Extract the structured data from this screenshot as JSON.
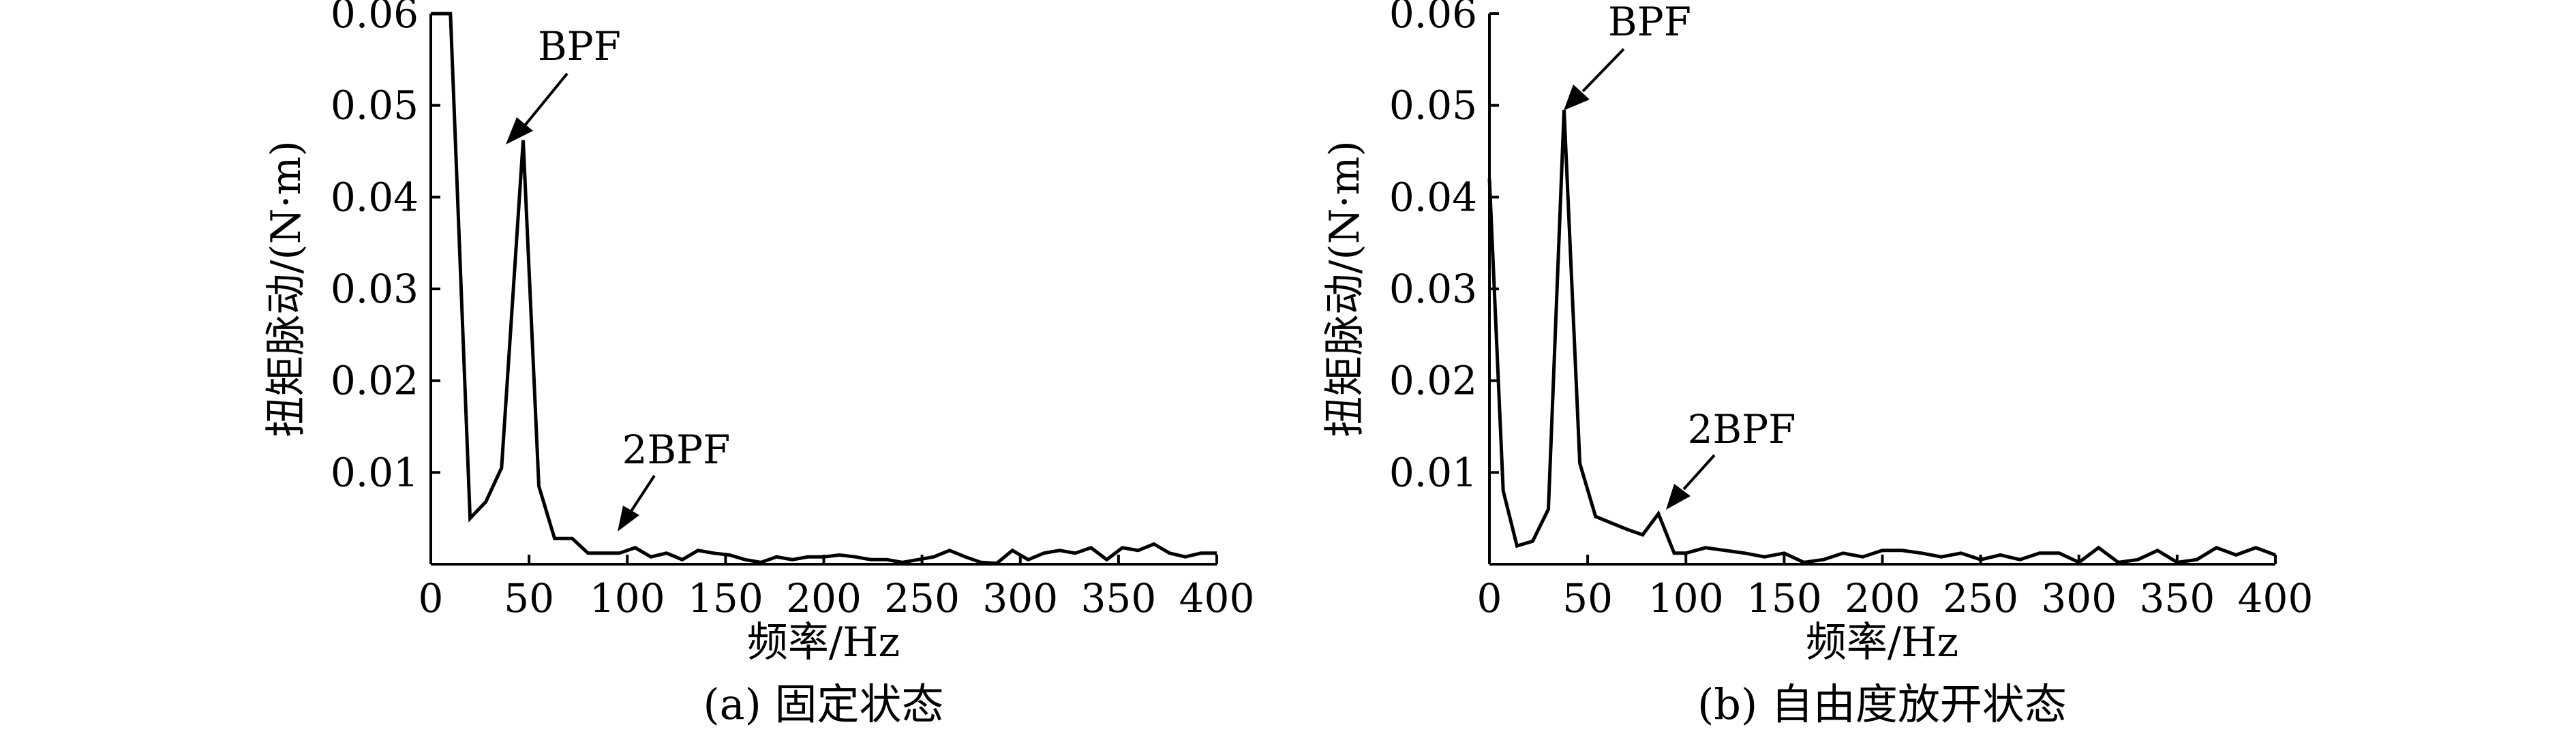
{
  "chart_data": [
    {
      "type": "line",
      "caption": "(a) 固定状态",
      "xlabel": "频率/Hz",
      "ylabel": "扭矩脉动/(N·m)",
      "xlim": [
        0,
        400
      ],
      "ylim": [
        0,
        0.06
      ],
      "xticks": [
        "0",
        "50",
        "100",
        "150",
        "200",
        "250",
        "300",
        "350",
        "400"
      ],
      "yticks": [
        "0.01",
        "0.02",
        "0.03",
        "0.04",
        "0.05",
        "0.06"
      ],
      "grid": false,
      "x": [
        0,
        10,
        20,
        28,
        36,
        47,
        55,
        63,
        72,
        80,
        88,
        96,
        104,
        112,
        120,
        128,
        136,
        144,
        152,
        160,
        168,
        176,
        184,
        192,
        200,
        208,
        216,
        224,
        232,
        240,
        248,
        256,
        264,
        272,
        280,
        288,
        296,
        304,
        312,
        320,
        328,
        336,
        344,
        352,
        360,
        368,
        376,
        384,
        392,
        400
      ],
      "y": [
        0.06,
        0.06,
        0.005,
        0.0068,
        0.0105,
        0.0462,
        0.0085,
        0.0028,
        0.0028,
        0.0012,
        0.0012,
        0.0012,
        0.0018,
        0.0008,
        0.0012,
        0.0005,
        0.0015,
        0.0012,
        0.001,
        0.0005,
        0.0002,
        0.0008,
        0.0005,
        0.0008,
        0.0008,
        0.001,
        0.0008,
        0.0005,
        0.0005,
        0.0002,
        0.0005,
        0.0008,
        0.0015,
        0.0008,
        0.0002,
        0.0001,
        0.0015,
        0.0005,
        0.0012,
        0.0015,
        0.0012,
        0.0018,
        0.0005,
        0.0018,
        0.0015,
        0.0022,
        0.0012,
        0.0008,
        0.0012,
        0.0012
      ],
      "annotations": [
        {
          "text": "BPF",
          "x": 47,
          "y": 0.0462
        },
        {
          "text": "2BPF",
          "x": 100,
          "y": 0.0018
        }
      ]
    },
    {
      "type": "line",
      "caption": "(b) 自由度放开状态",
      "xlabel": "频率/Hz",
      "ylabel": "扭矩脉动/(N·m)",
      "xlim": [
        0,
        400
      ],
      "ylim": [
        0,
        0.06
      ],
      "xticks": [
        "0",
        "50",
        "100",
        "150",
        "200",
        "250",
        "300",
        "350",
        "400"
      ],
      "yticks": [
        "0.01",
        "0.02",
        "0.03",
        "0.04",
        "0.05",
        "0.06"
      ],
      "grid": false,
      "x": [
        0,
        7,
        14,
        22,
        30,
        38,
        46,
        54,
        62,
        70,
        78,
        86,
        94,
        100,
        110,
        120,
        130,
        140,
        150,
        160,
        170,
        180,
        190,
        200,
        210,
        220,
        230,
        240,
        250,
        260,
        270,
        280,
        290,
        300,
        310,
        320,
        330,
        340,
        350,
        360,
        370,
        380,
        390,
        400
      ],
      "y": [
        0.042,
        0.008,
        0.002,
        0.0025,
        0.006,
        0.0495,
        0.011,
        0.0052,
        0.0045,
        0.0038,
        0.0032,
        0.0055,
        0.0012,
        0.0012,
        0.0018,
        0.0015,
        0.0012,
        0.0008,
        0.0012,
        0.0002,
        0.0005,
        0.0012,
        0.0008,
        0.0015,
        0.0015,
        0.0012,
        0.0008,
        0.0012,
        0.0005,
        0.001,
        0.0005,
        0.0012,
        0.0012,
        0.0002,
        0.0018,
        0.0002,
        0.0005,
        0.0015,
        0.0002,
        0.0005,
        0.0018,
        0.001,
        0.0018,
        0.001
      ],
      "annotations": [
        {
          "text": "BPF",
          "x": 46,
          "y": 0.0495
        },
        {
          "text": "2BPF",
          "x": 96,
          "y": 0.0055
        }
      ]
    }
  ]
}
